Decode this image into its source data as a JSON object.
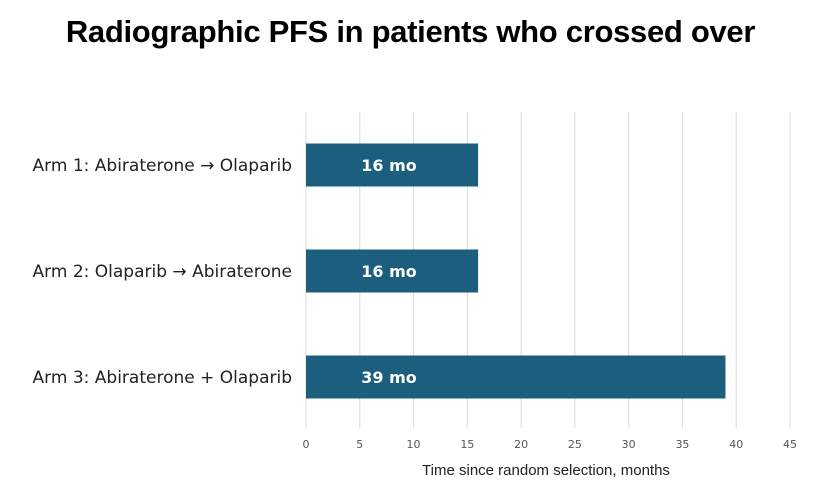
{
  "chart_data": {
    "type": "bar",
    "orientation": "horizontal",
    "title": "Radiographic PFS in patients who crossed over",
    "xlabel": "Time since random selection, months",
    "ylabel": "",
    "categories": [
      "Arm 1: Abiraterone → Olaparib",
      "Arm 2: Olaparib → Abiraterone",
      "Arm 3: Abiraterone + Olaparib"
    ],
    "values": [
      16,
      16,
      39
    ],
    "data_labels": [
      "16 mo",
      "16 mo",
      "39 mo"
    ],
    "xlim": [
      0,
      45
    ],
    "xticks": [
      0,
      5,
      10,
      15,
      20,
      25,
      30,
      35,
      40,
      45
    ],
    "grid": true,
    "bar_color": "#1b5e7e"
  }
}
